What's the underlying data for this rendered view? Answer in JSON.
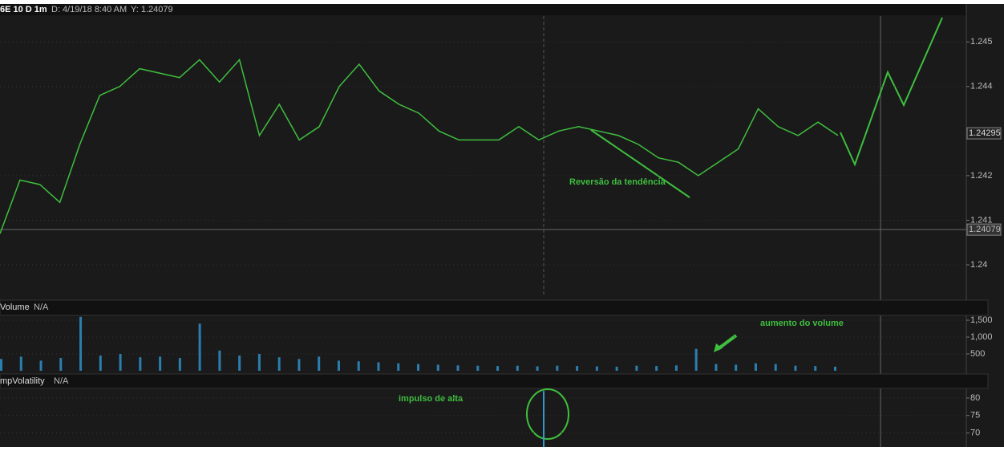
{
  "header": {
    "symbol": "6E 10 D 1m",
    "date": "D: 4/19/18 8:40 AM",
    "cursor": "Y: 1.24079"
  },
  "price_panel": {
    "type": "line",
    "color": "#3fbf3f",
    "ylim": [
      1.23928,
      1.24558
    ],
    "yticks": [
      1.245,
      1.244,
      1.242,
      1.241,
      1.24
    ],
    "values": [
      1.2407,
      1.2419,
      1.2418,
      1.2414,
      1.2427,
      1.2438,
      1.244,
      1.2444,
      1.2443,
      1.2442,
      1.2446,
      1.2441,
      1.2446,
      1.2429,
      1.2436,
      1.2428,
      1.2431,
      1.244,
      1.2445,
      1.2439,
      1.2436,
      1.2434,
      1.243,
      1.2428,
      1.2428,
      1.2428,
      1.2431,
      1.2428,
      1.243,
      1.2431,
      1.243,
      1.2429,
      1.2427,
      1.2424,
      1.2423,
      1.242,
      1.2423,
      1.2426,
      1.2435,
      1.2431,
      1.2429,
      1.2432,
      1.2429
    ],
    "last_price": 1.24295,
    "cursor_price": 1.24079,
    "annotation": "Reversão da tendência"
  },
  "volume_panel": {
    "type": "bar",
    "title": "Volume",
    "status": "N/A",
    "color": "#2a7fb0",
    "ylim": [
      0,
      1620
    ],
    "yticks": [
      {
        "value": 1500,
        "label": "1,500"
      },
      {
        "value": 1000,
        "label": "1,000"
      },
      500
    ],
    "values": [
      350,
      420,
      300,
      380,
      1600,
      450,
      500,
      400,
      420,
      380,
      1400,
      600,
      450,
      500,
      400,
      350,
      420,
      300,
      280,
      250,
      220,
      200,
      180,
      160,
      150,
      140,
      150,
      130,
      150,
      140,
      130,
      120,
      150,
      140,
      160,
      650,
      200,
      180,
      220,
      200,
      150,
      140,
      120
    ],
    "annotation": "aumento do volume"
  },
  "iv_panel": {
    "title": "mpVolatility",
    "status": "N/A",
    "ylim": [
      66,
      82.5
    ],
    "yticks": [
      80,
      75,
      70
    ],
    "peak": 82,
    "annotation": "impulso de alta"
  }
}
